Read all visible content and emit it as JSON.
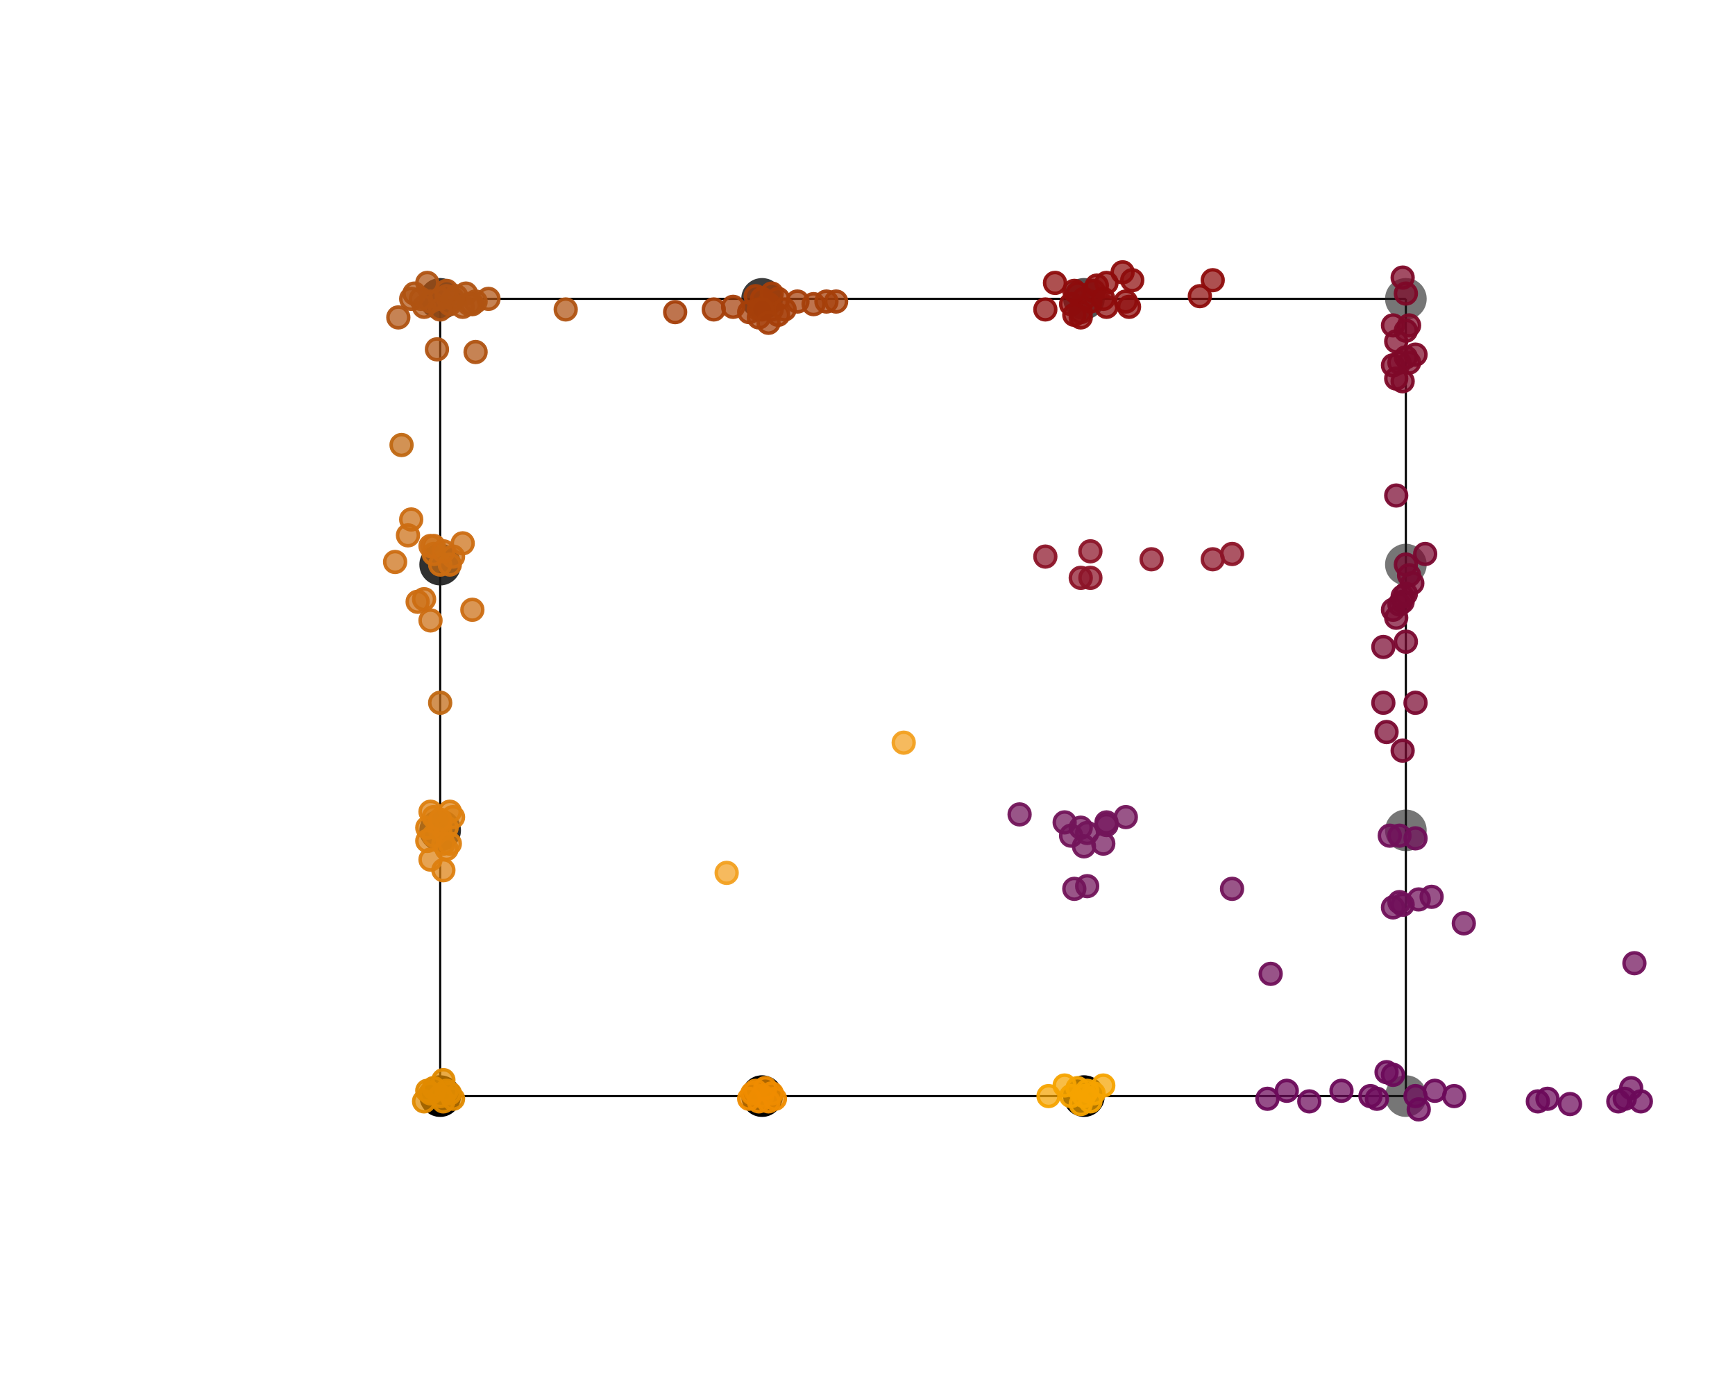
{
  "chart_data": {
    "type": "scatter",
    "title": "",
    "xlabel": "",
    "ylabel": "",
    "axes_visible": false,
    "grid": false,
    "legend": "none",
    "xlim": [
      -0.85,
      3.85
    ],
    "ylim": [
      -0.55,
      3.55
    ],
    "frame": {
      "x": [
        0,
        3
      ],
      "y": [
        0,
        3
      ],
      "color": "#000000"
    },
    "anchors": [
      {
        "x": 0,
        "y": 3,
        "color": "#1a1a1a",
        "opacity": 0.9
      },
      {
        "x": 1,
        "y": 3,
        "color": "#1a1a1a",
        "opacity": 0.85
      },
      {
        "x": 2,
        "y": 3,
        "color": "#1a1a1a",
        "opacity": 0.75
      },
      {
        "x": 3,
        "y": 3,
        "color": "#1a1a1a",
        "opacity": 0.6
      },
      {
        "x": 0,
        "y": 2,
        "color": "#1a1a1a",
        "opacity": 0.9
      },
      {
        "x": 3,
        "y": 2,
        "color": "#1a1a1a",
        "opacity": 0.6
      },
      {
        "x": 0,
        "y": 1,
        "color": "#1a1a1a",
        "opacity": 0.9
      },
      {
        "x": 3,
        "y": 1,
        "color": "#1a1a1a",
        "opacity": 0.6
      },
      {
        "x": 0,
        "y": 0,
        "color": "#000000",
        "opacity": 1.0
      },
      {
        "x": 1,
        "y": 0,
        "color": "#000000",
        "opacity": 1.0
      },
      {
        "x": 2,
        "y": 0,
        "color": "#000000",
        "opacity": 1.0
      },
      {
        "x": 3,
        "y": 0,
        "color": "#1a1a1a",
        "opacity": 0.6
      }
    ],
    "series": [
      {
        "color": "#e08a00",
        "points": [
          [
            0,
            0
          ],
          [
            0.02,
            0.02
          ],
          [
            -0.03,
            0.01
          ],
          [
            0.01,
            -0.02
          ],
          [
            -0.04,
            0.02
          ],
          [
            0.03,
            0.01
          ],
          [
            -0.05,
            -0.02
          ],
          [
            0.01,
            0.06
          ],
          [
            -0.02,
            0.03
          ],
          [
            0.04,
            -0.01
          ]
        ]
      },
      {
        "color": "#ef8c00",
        "points": [
          [
            1,
            0
          ],
          [
            0.99,
            -0.02
          ],
          [
            1.03,
            0.01
          ],
          [
            0.97,
            0.01
          ],
          [
            1.02,
            -0.02
          ],
          [
            0.98,
            0.02
          ],
          [
            1.04,
            -0.01
          ],
          [
            1.01,
            0.03
          ],
          [
            0.96,
            -0.01
          ]
        ]
      },
      {
        "color": "#f5a300",
        "points": [
          [
            2,
            0
          ],
          [
            1.98,
            0.03
          ],
          [
            2.02,
            -0.02
          ],
          [
            1.96,
            0.0
          ],
          [
            2.03,
            0.01
          ],
          [
            1.99,
            -0.03
          ],
          [
            1.89,
            0.0
          ],
          [
            2.06,
            0.04
          ],
          [
            1.94,
            0.04
          ],
          [
            2.01,
            0.02
          ]
        ]
      },
      {
        "color": "#dd7f0f",
        "points": [
          [
            0,
            1
          ],
          [
            0.02,
            1.01
          ],
          [
            -0.02,
            0.98
          ],
          [
            0.0,
            1.03
          ],
          [
            -0.03,
            1.07
          ],
          [
            0.03,
            1.07
          ],
          [
            0.02,
            0.93
          ],
          [
            0.01,
            0.95
          ],
          [
            -0.04,
            1.01
          ],
          [
            0.04,
            1.05
          ],
          [
            -0.04,
            0.96
          ],
          [
            -0.03,
            0.89
          ],
          [
            0.01,
            0.85
          ],
          [
            -0.02,
            1.05
          ],
          [
            0.0,
            1.04
          ],
          [
            0.03,
            0.95
          ]
        ]
      },
      {
        "color": "#cc6d12",
        "points": [
          [
            0,
            2
          ],
          [
            0.03,
            2.0
          ],
          [
            -0.02,
            2.04
          ],
          [
            0.04,
            2.03
          ],
          [
            -0.03,
            2.07
          ],
          [
            -0.09,
            2.17
          ],
          [
            0.07,
            2.08
          ],
          [
            -0.05,
            1.87
          ],
          [
            -0.07,
            1.86
          ],
          [
            0.1,
            1.83
          ],
          [
            -0.03,
            1.79
          ],
          [
            -0.14,
            2.01
          ],
          [
            -0.02,
            2.07
          ],
          [
            -0.1,
            2.11
          ],
          [
            0.01,
            2.05
          ]
        ]
      },
      {
        "color": "#c06812",
        "points": [
          [
            -0.12,
            2.45
          ],
          [
            0.0,
            1.48
          ]
        ]
      },
      {
        "color": "#b05312",
        "points": [
          [
            0,
            3
          ],
          [
            0.02,
            3.01
          ],
          [
            -0.03,
            2.99
          ],
          [
            0.03,
            2.98
          ],
          [
            -0.08,
            3.02
          ],
          [
            0.05,
            3.01
          ],
          [
            -0.09,
            3.0
          ],
          [
            0.1,
            2.98
          ],
          [
            0.15,
            3.0
          ],
          [
            -0.13,
            2.93
          ],
          [
            0.08,
            3.02
          ],
          [
            -0.05,
            2.97
          ],
          [
            0.11,
            2.99
          ],
          [
            0.07,
            2.97
          ],
          [
            -0.04,
            3.06
          ],
          [
            0.09,
            2.98
          ],
          [
            -0.06,
            3.0
          ],
          [
            0.04,
            3.0
          ],
          [
            0.0,
            2.96
          ],
          [
            -0.01,
            2.81
          ],
          [
            0.11,
            2.8
          ],
          [
            0.39,
            2.96
          ],
          [
            0.02,
            3.03
          ]
        ]
      },
      {
        "color": "#a53f0a",
        "points": [
          [
            1,
            3
          ],
          [
            0.98,
            3.01
          ],
          [
            1.02,
            2.98
          ],
          [
            1.05,
            3.0
          ],
          [
            1.03,
            2.96
          ],
          [
            0.96,
            2.95
          ],
          [
            0.91,
            2.97
          ],
          [
            0.85,
            2.96
          ],
          [
            1.11,
            2.99
          ],
          [
            1.16,
            2.98
          ],
          [
            1.2,
            2.99
          ],
          [
            1.23,
            2.99
          ],
          [
            0.99,
            2.93
          ],
          [
            0.73,
            2.95
          ],
          [
            0.99,
            2.96
          ],
          [
            1.05,
            2.94
          ],
          [
            1.07,
            2.96
          ],
          [
            1.03,
            3.02
          ],
          [
            1.0,
            2.96
          ],
          [
            1.02,
            2.91
          ]
        ]
      },
      {
        "color": "#8e0c0c",
        "points": [
          [
            2,
            3
          ],
          [
            1.98,
            3.02
          ],
          [
            2.02,
            2.99
          ],
          [
            1.96,
            2.98
          ],
          [
            2.03,
            3.03
          ],
          [
            1.99,
            2.95
          ],
          [
            2.07,
            2.97
          ],
          [
            2.14,
            2.97
          ],
          [
            2.13,
            2.99
          ],
          [
            1.91,
            3.06
          ],
          [
            2.07,
            3.06
          ],
          [
            2.15,
            3.07
          ],
          [
            1.99,
            2.93
          ],
          [
            1.97,
            2.94
          ],
          [
            1.97,
            3.03
          ],
          [
            1.88,
            2.96
          ],
          [
            2.04,
            3.05
          ],
          [
            2.12,
            3.1
          ],
          [
            2.06,
            3.0
          ],
          [
            2.36,
            3.01
          ],
          [
            2.4,
            3.07
          ]
        ]
      },
      {
        "color": "#8c1428",
        "points": [
          [
            2.02,
            2.05
          ],
          [
            1.88,
            2.03
          ],
          [
            1.99,
            1.95
          ],
          [
            2.02,
            1.95
          ],
          [
            2.21,
            2.02
          ],
          [
            2.4,
            2.02
          ],
          [
            2.46,
            2.04
          ]
        ]
      },
      {
        "color": "#7e0828",
        "points": [
          [
            2.99,
            3.08
          ],
          [
            2.96,
            2.9
          ],
          [
            3.0,
            2.88
          ],
          [
            2.97,
            2.84
          ],
          [
            3.0,
            2.78
          ],
          [
            3.03,
            2.79
          ],
          [
            2.96,
            2.75
          ],
          [
            2.98,
            2.76
          ],
          [
            3.01,
            2.76
          ],
          [
            2.97,
            2.7
          ],
          [
            2.99,
            2.69
          ],
          [
            3.01,
            2.9
          ],
          [
            3.0,
            3.02
          ]
        ]
      },
      {
        "color": "#7a0830",
        "points": [
          [
            3.0,
            2.0
          ],
          [
            2.97,
            2.26
          ],
          [
            3.06,
            2.04
          ],
          [
            3.02,
            1.93
          ],
          [
            3.0,
            1.89
          ],
          [
            2.99,
            1.86
          ],
          [
            2.98,
            1.85
          ],
          [
            2.97,
            1.8
          ],
          [
            2.96,
            1.83
          ],
          [
            2.93,
            1.69
          ],
          [
            3.0,
            1.71
          ],
          [
            2.93,
            1.48
          ],
          [
            3.03,
            1.48
          ],
          [
            2.94,
            1.37
          ],
          [
            2.99,
            1.3
          ],
          [
            2.99,
            1.88
          ],
          [
            3.01,
            1.96
          ]
        ]
      },
      {
        "color": "#72145a",
        "points": [
          [
            2.0,
            0.94
          ],
          [
            1.94,
            1.03
          ],
          [
            1.99,
            1.01
          ],
          [
            2.07,
            1.03
          ],
          [
            2.07,
            1.02
          ],
          [
            2.13,
            1.05
          ],
          [
            1.96,
            0.98
          ],
          [
            2.06,
            0.95
          ],
          [
            2.01,
            0.99
          ],
          [
            1.97,
            0.78
          ],
          [
            2.01,
            0.79
          ],
          [
            1.8,
            1.06
          ],
          [
            2.46,
            0.78
          ]
        ]
      },
      {
        "color": "#70105a",
        "points": [
          [
            2.95,
            0.98
          ],
          [
            2.98,
            0.98
          ],
          [
            3.03,
            0.97
          ],
          [
            2.98,
            0.73
          ],
          [
            3.08,
            0.75
          ],
          [
            3.04,
            0.74
          ],
          [
            2.96,
            0.71
          ],
          [
            2.99,
            0.72
          ],
          [
            3.18,
            0.65
          ],
          [
            2.58,
            0.46
          ],
          [
            3.71,
            0.5
          ]
        ]
      },
      {
        "color": "#6c0a5a",
        "points": [
          [
            2.57,
            -0.01
          ],
          [
            2.63,
            0.02
          ],
          [
            2.7,
            -0.02
          ],
          [
            2.8,
            0.02
          ],
          [
            2.89,
            0.0
          ],
          [
            2.91,
            -0.01
          ],
          [
            2.94,
            0.09
          ],
          [
            2.96,
            0.08
          ],
          [
            3.03,
            0.0
          ],
          [
            3.04,
            -0.05
          ],
          [
            3.09,
            0.02
          ],
          [
            3.15,
            0.0
          ],
          [
            3.41,
            -0.02
          ],
          [
            3.44,
            -0.01
          ],
          [
            3.51,
            -0.03
          ],
          [
            3.66,
            -0.02
          ],
          [
            3.68,
            -0.01
          ],
          [
            3.7,
            0.03
          ],
          [
            3.73,
            -0.02
          ]
        ]
      },
      {
        "color": "#f2a020",
        "points": [
          [
            1.44,
            1.33
          ],
          [
            0.89,
            0.84
          ]
        ]
      }
    ]
  }
}
